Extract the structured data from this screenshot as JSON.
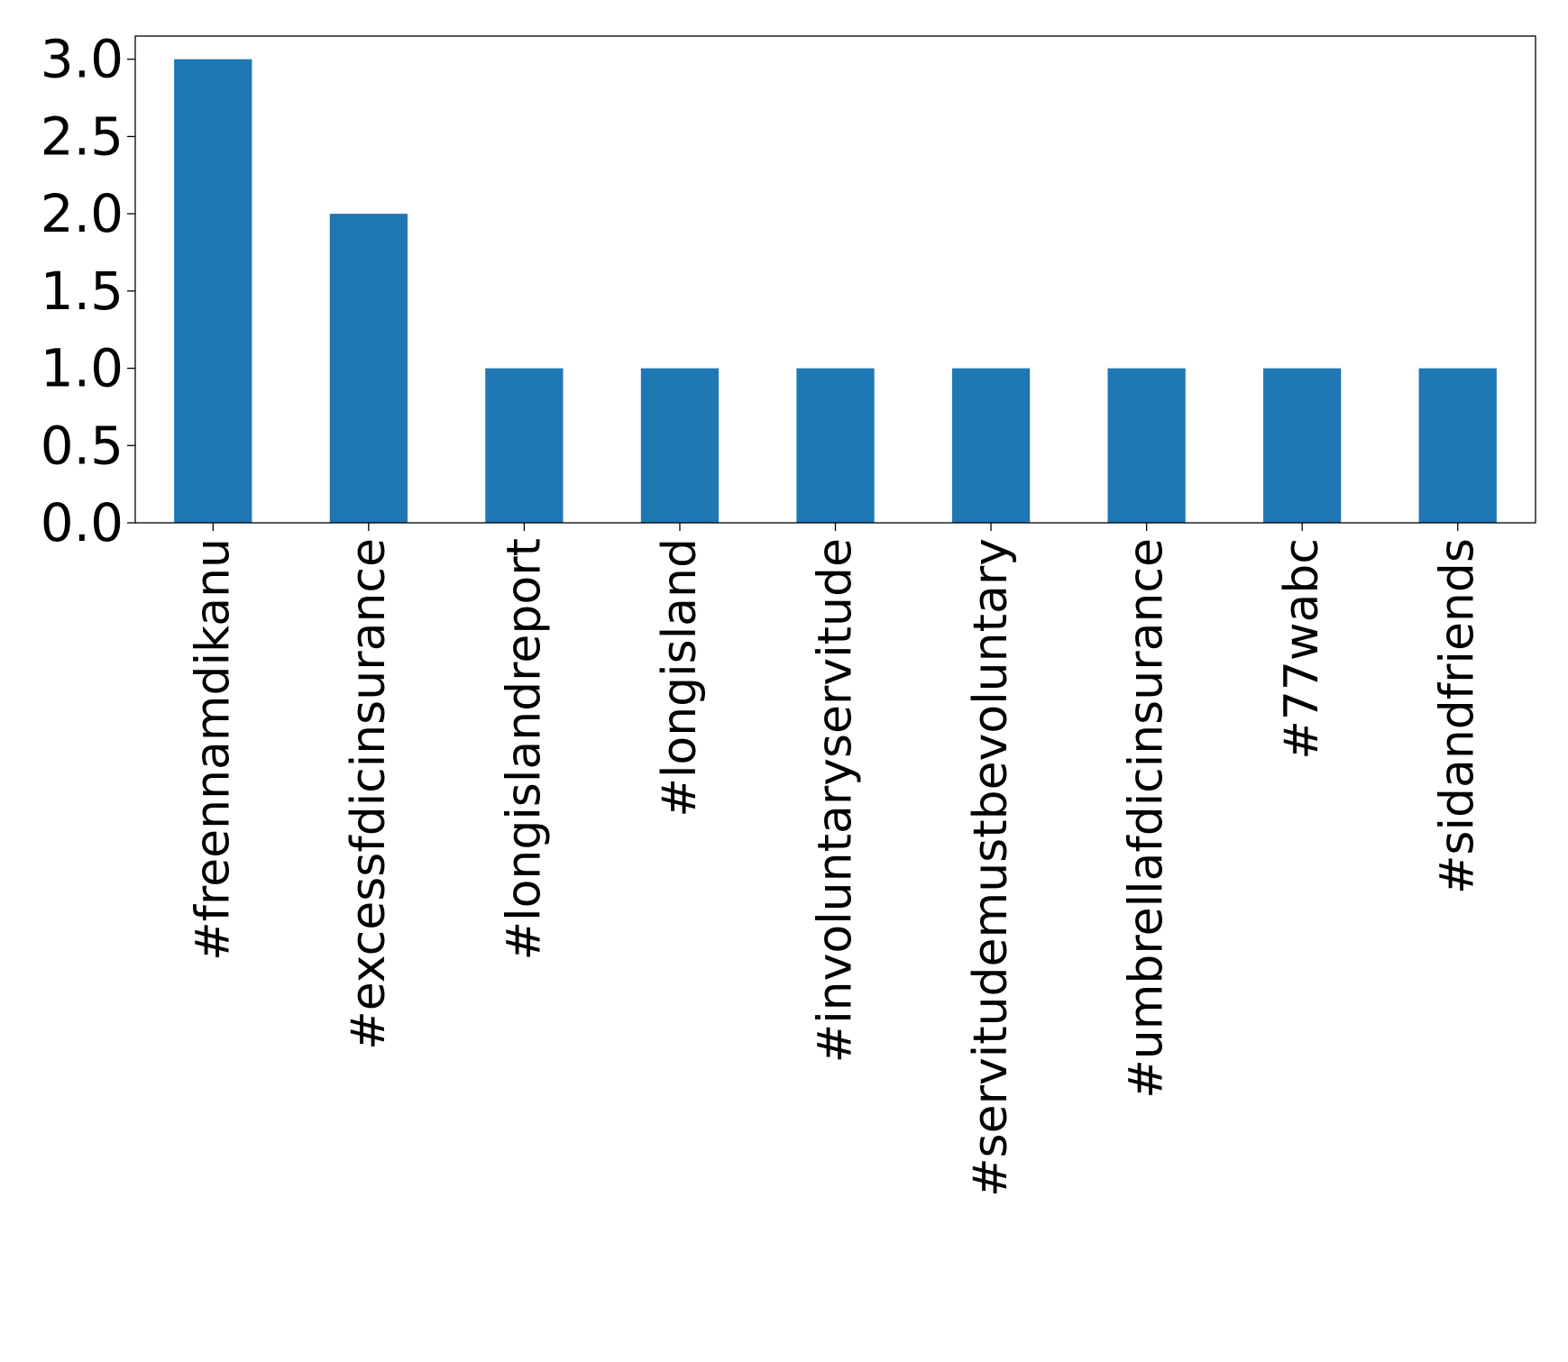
{
  "chart_data": {
    "type": "bar",
    "title": "",
    "xlabel": "",
    "ylabel": "",
    "categories": [
      "#freennamdikanu",
      "#excessfdicinsurance",
      "#longislandreport",
      "#longisland",
      "#involuntaryservitude",
      "#servitudemustbevoluntary",
      "#umbrellafdicinsurance",
      "#77wabc",
      "#sidandfriends"
    ],
    "values": [
      3,
      2,
      1,
      1,
      1,
      1,
      1,
      1,
      1
    ],
    "ylim": [
      0,
      3.15
    ],
    "yticks": [
      0.0,
      0.5,
      1.0,
      1.5,
      2.0,
      2.5,
      3.0
    ],
    "ytick_labels": [
      "0.0",
      "0.5",
      "1.0",
      "1.5",
      "2.0",
      "2.5",
      "3.0"
    ],
    "bar_color": "#1f77b4",
    "grid": false,
    "legend": "none"
  }
}
